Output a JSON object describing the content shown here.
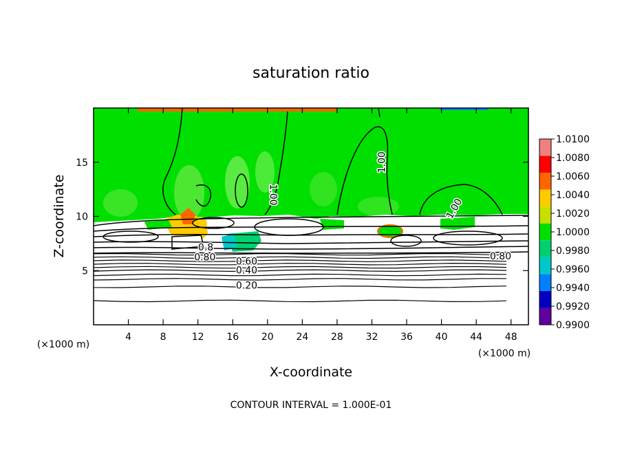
{
  "chart_data": {
    "type": "heatmap",
    "title": "saturation ratio",
    "xlabel": "X-coordinate",
    "ylabel": "Z-coordinate",
    "x_unit_left": "(×1000 m)",
    "x_unit_right": "(×1000 m)",
    "xlim": [
      0,
      50
    ],
    "ylim": [
      0,
      20
    ],
    "xticks": [
      4,
      8,
      12,
      16,
      20,
      24,
      28,
      32,
      36,
      40,
      44,
      48
    ],
    "yticks": [
      5,
      10,
      15
    ],
    "footer": "CONTOUR INTERVAL = 1.000E-01",
    "colorbar": {
      "levels": [
        "1.0100",
        "1.0080",
        "1.0060",
        "1.0040",
        "1.0020",
        "1.0000",
        "0.9980",
        "0.9960",
        "0.9940",
        "0.9920",
        "0.9900"
      ],
      "colors": [
        "#f08080",
        "#ff0000",
        "#ff6600",
        "#ffcc00",
        "#c8e000",
        "#00e000",
        "#00d070",
        "#00c8c8",
        "#0080ff",
        "#0000c0",
        "#6000a0"
      ]
    },
    "background_color": "#00e000",
    "contour_labels": [
      {
        "text": "1.00",
        "x": 33.2,
        "z": 15.0,
        "rotate": -90
      },
      {
        "text": "1.00",
        "x": 20.6,
        "z": 12.0,
        "rotate": 90
      },
      {
        "text": "1.00",
        "x": 41.5,
        "z": 10.7,
        "rotate": -60
      },
      {
        "text": "0.80",
        "x": 12.8,
        "z": 6.2,
        "rotate": 0
      },
      {
        "text": "0.60",
        "x": 17.6,
        "z": 5.8,
        "rotate": 0
      },
      {
        "text": "0.40",
        "x": 17.6,
        "z": 5.0,
        "rotate": 0
      },
      {
        "text": "0.20",
        "x": 17.6,
        "z": 3.6,
        "rotate": 0
      },
      {
        "text": "0.80",
        "x": 46.8,
        "z": 6.3,
        "rotate": 0
      },
      {
        "text": "0.8",
        "x": 12.9,
        "z": 7.1,
        "rotate": 0
      }
    ],
    "horizontal_contours_z": [
      2.2,
      3.5,
      4.2,
      4.6,
      5.0,
      5.3,
      5.6,
      5.9,
      6.2,
      6.5
    ]
  }
}
